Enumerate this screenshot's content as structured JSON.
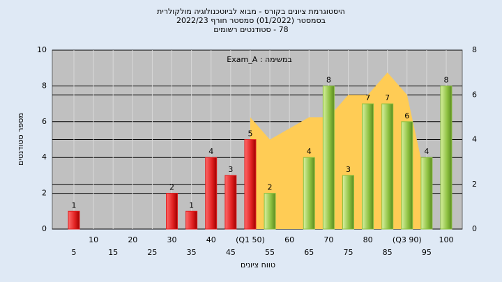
{
  "chart_data": {
    "type": "bar",
    "title": [
      "היסטוגרמת ציונים בקורס - מבוא לביוטכנולוגיה מולקולרית",
      "בסמסטר (01/2022) סמסטר חורף 2022/23",
      "78 - סטודנטים רשומים"
    ],
    "annotation": "במשימה : Exam_A",
    "y_label": "מספר סטודנטים",
    "x_label": "טווח ציונים",
    "categories": [
      "5",
      "10",
      "15",
      "20",
      "25",
      "30",
      "35",
      "40",
      "45",
      "(Q1 50)",
      "55",
      "60",
      "65",
      "70",
      "75",
      "80",
      "85",
      "(Q3 90)",
      "95",
      "100"
    ],
    "values": [
      1,
      0,
      0,
      0,
      0,
      2,
      1,
      4,
      3,
      5,
      2,
      0,
      4,
      8,
      3,
      7,
      7,
      6,
      4,
      8
    ],
    "colors": [
      "#e02020",
      "#e02020",
      "#e02020",
      "#e02020",
      "#e02020",
      "#e02020",
      "#e02020",
      "#e02020",
      "#e02020",
      "#e02020",
      "#8cc040",
      "#8cc040",
      "#8cc040",
      "#8cc040",
      "#8cc040",
      "#8cc040",
      "#8cc040",
      "#8cc040",
      "#8cc040",
      "#8cc040"
    ],
    "series": [
      {
        "color": "#ffcc55",
        "axis": "y2",
        "values": [
          null,
          null,
          null,
          null,
          null,
          null,
          null,
          null,
          null,
          5,
          4,
          4.5,
          5,
          5,
          6,
          6,
          7,
          6,
          2,
          null
        ]
      }
    ],
    "ylim": [
      0,
      10
    ],
    "yticks": [
      0,
      2,
      4,
      6,
      8,
      10
    ],
    "y2lim": [
      0,
      8
    ],
    "y2ticks": [
      0,
      2,
      4,
      6,
      8
    ],
    "grid": true
  }
}
